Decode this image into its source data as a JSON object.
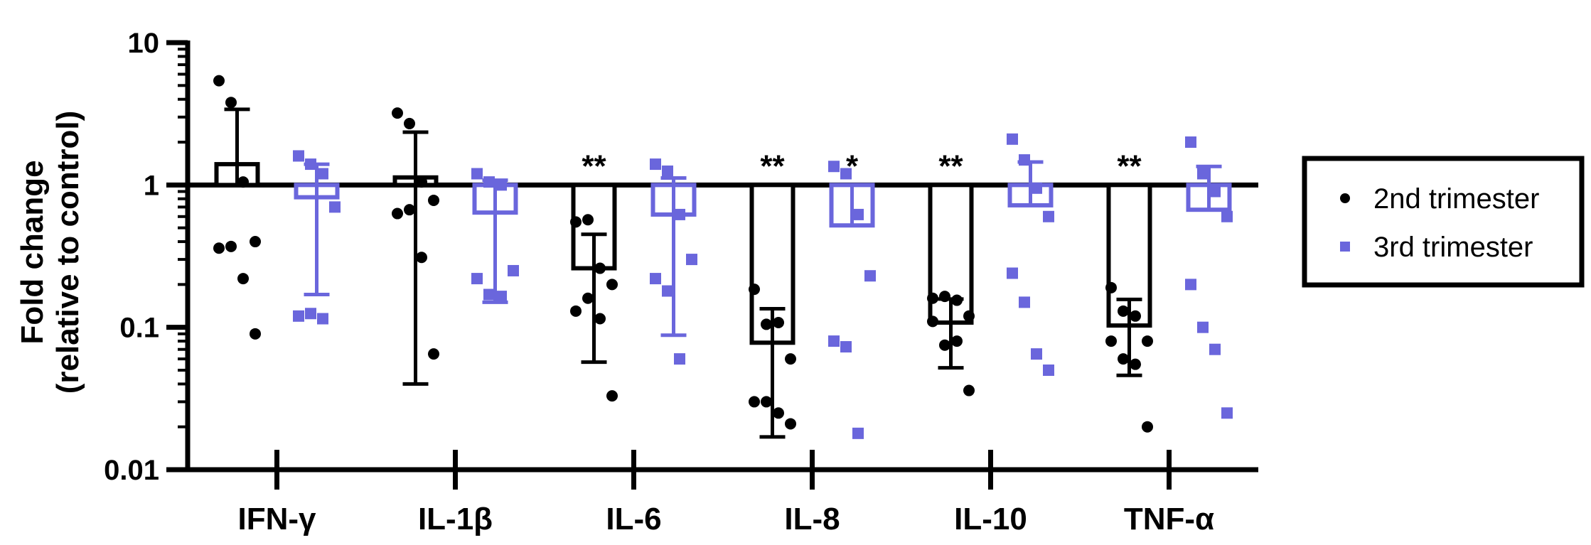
{
  "chart_data": {
    "type": "bar",
    "yscale": "log",
    "ylim": [
      0.01,
      10
    ],
    "yticks": [
      {
        "value": 10,
        "label": "10"
      },
      {
        "value": 1,
        "label": "1"
      },
      {
        "value": 0.1,
        "label": "0.1"
      },
      {
        "value": 0.01,
        "label": "0.01"
      }
    ],
    "ylabel_line1": "Fold change",
    "ylabel_line2": "(relative to control)",
    "reference_line": 1,
    "categories": [
      "IFN-γ",
      "IL-1β",
      "IL-6",
      "IL-8",
      "IL-10",
      "TNF-α"
    ],
    "series": [
      {
        "name": "2nd trimester",
        "color": "#000000",
        "marker": "circle",
        "means": [
          1.4,
          1.13,
          0.26,
          0.078,
          0.108,
          0.103
        ],
        "error_low": [
          1.0,
          0.04,
          0.057,
          0.017,
          0.052,
          0.046
        ],
        "error_high": [
          3.4,
          2.35,
          0.45,
          0.135,
          0.158,
          0.157
        ],
        "points": [
          [
            5.4,
            3.8,
            1.05,
            0.4,
            0.36,
            0.37,
            0.22,
            0.09
          ],
          [
            3.2,
            2.7,
            1.05,
            0.78,
            0.63,
            0.67,
            0.31,
            0.065
          ],
          [
            0.55,
            0.57,
            0.26,
            0.2,
            0.13,
            0.16,
            0.115,
            0.033
          ],
          [
            0.185,
            0.105,
            0.108,
            0.06,
            0.03,
            0.03,
            0.025,
            0.021
          ],
          [
            0.16,
            0.165,
            0.155,
            0.12,
            0.11,
            0.075,
            0.08,
            0.036
          ],
          [
            0.19,
            0.13,
            0.12,
            0.08,
            0.08,
            0.06,
            0.055,
            0.02
          ]
        ]
      },
      {
        "name": "3rd trimester",
        "color": "#6a66dc",
        "marker": "square",
        "means": [
          0.82,
          0.64,
          0.62,
          0.52,
          0.72,
          0.67
        ],
        "error_low": [
          0.17,
          0.15,
          0.088,
          0.52,
          0.72,
          0.67
        ],
        "error_high": [
          1.4,
          1.08,
          1.12,
          1.0,
          1.45,
          1.35
        ],
        "points": [
          [
            1.6,
            1.4,
            1.2,
            0.7,
            0.12,
            0.125,
            0.115
          ],
          [
            1.2,
            1.05,
            1.0,
            0.25,
            0.22,
            0.17,
            0.165
          ],
          [
            1.4,
            1.25,
            0.62,
            0.3,
            0.22,
            0.18,
            0.06
          ],
          [
            1.35,
            1.2,
            0.62,
            0.23,
            0.08,
            0.073,
            0.018
          ],
          [
            2.1,
            1.5,
            0.95,
            0.6,
            0.24,
            0.15,
            0.065,
            0.05
          ],
          [
            2.0,
            1.2,
            0.9,
            0.6,
            0.2,
            0.1,
            0.07,
            0.025
          ]
        ]
      }
    ],
    "significance": [
      {
        "category": 2,
        "series": 0,
        "label": "**"
      },
      {
        "category": 3,
        "series": 0,
        "label": "**"
      },
      {
        "category": 3,
        "series": 1,
        "label": "*"
      },
      {
        "category": 4,
        "series": 0,
        "label": "**"
      },
      {
        "category": 5,
        "series": 0,
        "label": "**"
      }
    ],
    "legend_position": "right"
  }
}
